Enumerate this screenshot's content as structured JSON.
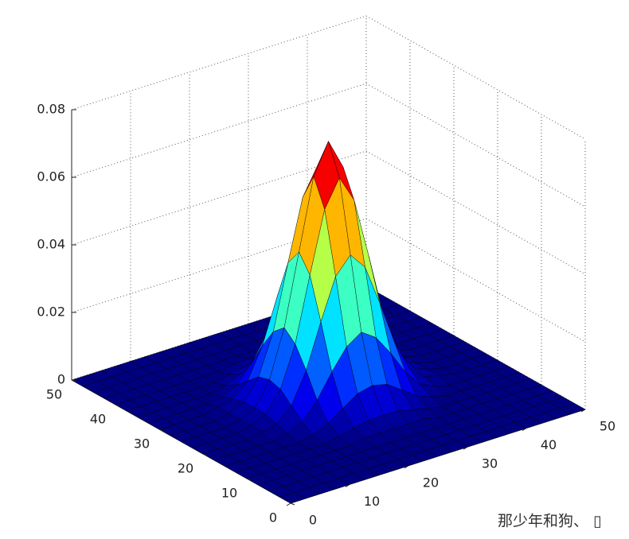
{
  "chart_data": {
    "type": "surface",
    "x": [
      0,
      2.5,
      5,
      7.5,
      10,
      12.5,
      15,
      17.5,
      20,
      22.5,
      25,
      27.5,
      30,
      32.5,
      35,
      37.5,
      40,
      42.5,
      45,
      47.5,
      50
    ],
    "y": [
      0,
      2.5,
      5,
      7.5,
      10,
      12.5,
      15,
      17.5,
      20,
      22.5,
      25,
      27.5,
      30,
      32.5,
      35,
      37.5,
      40,
      42.5,
      45,
      47.5,
      50
    ],
    "z": [
      [
        0,
        0,
        0,
        0,
        0,
        0,
        0,
        0,
        0,
        0,
        0,
        0,
        0,
        0,
        0,
        0,
        0,
        0,
        0,
        0,
        0
      ],
      [
        0,
        0,
        0,
        0,
        0,
        0,
        0,
        0,
        0,
        0,
        0,
        0,
        0,
        0,
        0,
        0,
        0,
        0,
        0,
        0,
        0
      ],
      [
        0,
        0,
        0,
        0,
        0,
        0,
        0,
        0,
        0,
        0,
        0,
        0,
        0,
        0,
        0,
        0,
        0,
        0,
        0,
        0,
        0
      ],
      [
        0,
        0,
        0,
        0,
        0,
        0,
        0,
        0,
        0,
        0,
        0,
        0,
        0,
        0,
        0,
        0,
        0,
        0,
        0,
        0,
        0
      ],
      [
        0,
        0,
        0,
        0,
        0,
        0,
        0,
        0,
        0.001,
        0.001,
        0.001,
        0.001,
        0.001,
        0,
        0,
        0,
        0,
        0,
        0,
        0,
        0
      ],
      [
        0,
        0,
        0,
        0,
        0,
        0,
        0,
        0.001,
        0.002,
        0.003,
        0.003,
        0.003,
        0.002,
        0.001,
        0,
        0,
        0,
        0,
        0,
        0,
        0
      ],
      [
        0,
        0,
        0,
        0,
        0,
        0,
        0.001,
        0.003,
        0.006,
        0.009,
        0.01,
        0.009,
        0.006,
        0.003,
        0.001,
        0,
        0,
        0,
        0,
        0,
        0
      ],
      [
        0,
        0,
        0,
        0,
        0,
        0.001,
        0.003,
        0.008,
        0.015,
        0.021,
        0.024,
        0.021,
        0.015,
        0.008,
        0.003,
        0.001,
        0,
        0,
        0,
        0,
        0
      ],
      [
        0,
        0,
        0,
        0,
        0.001,
        0.002,
        0.006,
        0.015,
        0.028,
        0.04,
        0.045,
        0.04,
        0.028,
        0.015,
        0.006,
        0.002,
        0.001,
        0,
        0,
        0,
        0
      ],
      [
        0,
        0,
        0,
        0,
        0.001,
        0.003,
        0.009,
        0.021,
        0.04,
        0.058,
        0.066,
        0.058,
        0.04,
        0.021,
        0.009,
        0.003,
        0.001,
        0,
        0,
        0,
        0
      ],
      [
        0,
        0,
        0,
        0,
        0.001,
        0.003,
        0.01,
        0.024,
        0.045,
        0.066,
        0.075,
        0.066,
        0.045,
        0.024,
        0.01,
        0.003,
        0.001,
        0,
        0,
        0,
        0
      ],
      [
        0,
        0,
        0,
        0,
        0.001,
        0.003,
        0.009,
        0.021,
        0.04,
        0.058,
        0.066,
        0.058,
        0.04,
        0.021,
        0.009,
        0.003,
        0.001,
        0,
        0,
        0,
        0
      ],
      [
        0,
        0,
        0,
        0,
        0.001,
        0.002,
        0.006,
        0.015,
        0.028,
        0.04,
        0.045,
        0.04,
        0.028,
        0.015,
        0.006,
        0.002,
        0.001,
        0,
        0,
        0,
        0
      ],
      [
        0,
        0,
        0,
        0,
        0,
        0.001,
        0.003,
        0.008,
        0.015,
        0.021,
        0.024,
        0.021,
        0.015,
        0.008,
        0.003,
        0.001,
        0,
        0,
        0,
        0,
        0
      ],
      [
        0,
        0,
        0,
        0,
        0,
        0,
        0.001,
        0.003,
        0.006,
        0.009,
        0.01,
        0.009,
        0.006,
        0.003,
        0.001,
        0,
        0,
        0,
        0,
        0,
        0
      ],
      [
        0,
        0,
        0,
        0,
        0,
        0,
        0,
        0.001,
        0.002,
        0.003,
        0.003,
        0.003,
        0.002,
        0.001,
        0,
        0,
        0,
        0,
        0,
        0,
        0
      ],
      [
        0,
        0,
        0,
        0,
        0,
        0,
        0,
        0,
        0.001,
        0.001,
        0.001,
        0.001,
        0.001,
        0,
        0,
        0,
        0,
        0,
        0,
        0,
        0
      ],
      [
        0,
        0,
        0,
        0,
        0,
        0,
        0,
        0,
        0,
        0,
        0,
        0,
        0,
        0,
        0,
        0,
        0,
        0,
        0,
        0,
        0
      ],
      [
        0,
        0,
        0,
        0,
        0,
        0,
        0,
        0,
        0,
        0,
        0,
        0,
        0,
        0,
        0,
        0,
        0,
        0,
        0,
        0,
        0
      ],
      [
        0,
        0,
        0,
        0,
        0,
        0,
        0,
        0,
        0,
        0,
        0,
        0,
        0,
        0,
        0,
        0,
        0,
        0,
        0,
        0,
        0
      ],
      [
        0,
        0,
        0,
        0,
        0,
        0,
        0,
        0,
        0,
        0,
        0,
        0,
        0,
        0,
        0,
        0,
        0,
        0,
        0,
        0,
        0
      ]
    ],
    "xlim": [
      0,
      50
    ],
    "ylim": [
      0,
      50
    ],
    "zlim": [
      0,
      0.08
    ],
    "xticks": [
      0,
      10,
      20,
      30,
      40,
      50
    ],
    "yticks": [
      0,
      10,
      20,
      30,
      40,
      50
    ],
    "zticks": [
      0,
      0.02,
      0.04,
      0.06,
      0.08
    ],
    "grid": true,
    "colormap": "jet",
    "edgecolor": "#000000"
  },
  "watermark": "那少年和狗、 ▯"
}
